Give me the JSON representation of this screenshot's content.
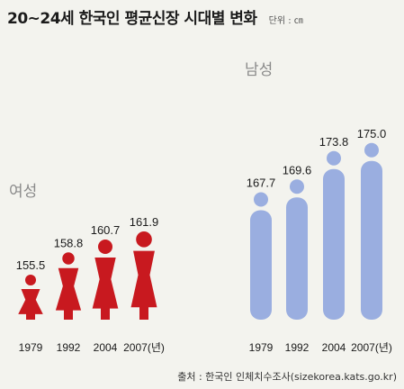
{
  "title": "20~24세 한국인 평균신장 시대별 변화",
  "unit": "단위 : ㎝",
  "source": "출처 : 한국인 인체치수조사(sizekorea.kats.go.kr)",
  "colors": {
    "female": "#c8191f",
    "male": "#9aaee0",
    "female_label": "#8a8a8a",
    "male_label": "#8a8a8a"
  },
  "chart_data": [
    {
      "type": "bar",
      "name": "여성",
      "categories": [
        "1979",
        "1992",
        "2004",
        "2007(년)"
      ],
      "values": [
        155.5,
        158.8,
        160.7,
        161.9
      ],
      "value_labels": [
        "155.5",
        "158.8",
        "160.7",
        "161.9"
      ]
    },
    {
      "type": "bar",
      "name": "남성",
      "categories": [
        "1979",
        "1992",
        "2004",
        "2007(년)"
      ],
      "values": [
        167.7,
        169.6,
        173.8,
        175.0
      ],
      "value_labels": [
        "167.7",
        "169.6",
        "173.8",
        "175.0"
      ]
    }
  ]
}
